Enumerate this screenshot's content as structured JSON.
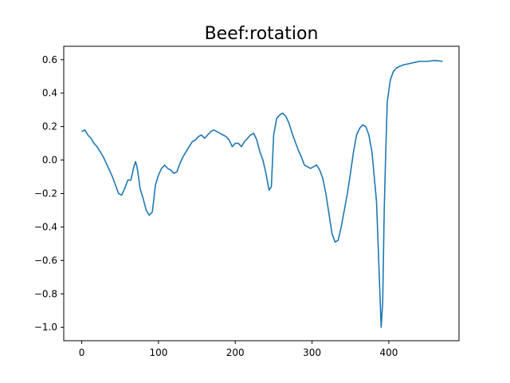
{
  "chart_data": {
    "type": "line",
    "title": "Beef:rotation",
    "xlabel": "",
    "ylabel": "",
    "xlim": [
      -23.4,
      491.4
    ],
    "ylim": [
      -1.08,
      0.68
    ],
    "xticks": [
      0,
      100,
      200,
      300,
      400
    ],
    "xtick_labels": [
      "0",
      "100",
      "200",
      "300",
      "400"
    ],
    "yticks": [
      0.6,
      0.4,
      0.2,
      0.0,
      -0.2,
      -0.4,
      -0.6,
      -0.8,
      -1.0
    ],
    "ytick_labels": [
      "0.6",
      "0.4",
      "0.2",
      "0.0",
      "−0.2",
      "−0.4",
      "−0.6",
      "−0.8",
      "−1.0"
    ],
    "grid": false,
    "legend": "none",
    "series": [
      {
        "color": "#1f77b4",
        "x": [
          0,
          4,
          8,
          12,
          16,
          20,
          24,
          28,
          32,
          36,
          40,
          44,
          48,
          52,
          56,
          60,
          64,
          68,
          70,
          72,
          74,
          76,
          80,
          84,
          88,
          92,
          96,
          100,
          104,
          108,
          112,
          116,
          120,
          124,
          128,
          132,
          136,
          140,
          144,
          148,
          152,
          156,
          160,
          164,
          168,
          172,
          176,
          180,
          184,
          188,
          192,
          196,
          200,
          204,
          208,
          212,
          216,
          220,
          224,
          228,
          232,
          236,
          240,
          244,
          247,
          250,
          254,
          258,
          262,
          266,
          270,
          274,
          278,
          282,
          286,
          290,
          294,
          298,
          302,
          306,
          310,
          314,
          318,
          322,
          326,
          330,
          334,
          338,
          342,
          346,
          350,
          354,
          358,
          362,
          366,
          370,
          374,
          378,
          380,
          384,
          388,
          390,
          392,
          394,
          396,
          398,
          402,
          406,
          410,
          414,
          420,
          430,
          440,
          450,
          460,
          470
        ],
        "y": [
          0.17,
          0.18,
          0.15,
          0.13,
          0.1,
          0.08,
          0.05,
          0.02,
          -0.02,
          -0.06,
          -0.1,
          -0.15,
          -0.2,
          -0.21,
          -0.17,
          -0.12,
          -0.12,
          -0.04,
          -0.01,
          -0.04,
          -0.1,
          -0.17,
          -0.23,
          -0.3,
          -0.33,
          -0.31,
          -0.15,
          -0.09,
          -0.05,
          -0.03,
          -0.05,
          -0.06,
          -0.08,
          -0.07,
          -0.02,
          0.02,
          0.05,
          0.08,
          0.11,
          0.12,
          0.14,
          0.15,
          0.13,
          0.15,
          0.17,
          0.18,
          0.17,
          0.16,
          0.15,
          0.14,
          0.12,
          0.08,
          0.1,
          0.1,
          0.08,
          0.11,
          0.13,
          0.15,
          0.16,
          0.12,
          0.05,
          0.0,
          -0.08,
          -0.18,
          -0.16,
          0.15,
          0.25,
          0.27,
          0.28,
          0.26,
          0.22,
          0.16,
          0.11,
          0.06,
          0.02,
          -0.03,
          -0.04,
          -0.05,
          -0.04,
          -0.03,
          -0.06,
          -0.11,
          -0.2,
          -0.32,
          -0.44,
          -0.49,
          -0.48,
          -0.4,
          -0.3,
          -0.2,
          -0.08,
          0.05,
          0.15,
          0.19,
          0.21,
          0.2,
          0.15,
          0.05,
          -0.05,
          -0.25,
          -0.75,
          -1.0,
          -0.85,
          -0.3,
          0.05,
          0.35,
          0.48,
          0.53,
          0.55,
          0.56,
          0.57,
          0.58,
          0.59,
          0.59,
          0.595,
          0.59
        ]
      }
    ]
  }
}
